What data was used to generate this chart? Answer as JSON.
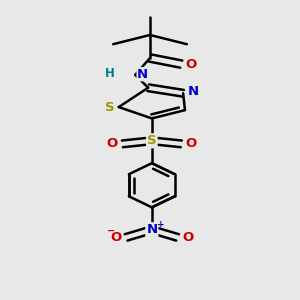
{
  "background_color": "#e8e8e8",
  "bond_color": "#000000",
  "bond_width": 1.8,
  "figsize": [
    3.0,
    3.0
  ],
  "dpi": 100,
  "xlim": [
    0.1,
    0.9
  ],
  "ylim": [
    0.02,
    0.98
  ],
  "colors": {
    "S": "#999900",
    "N": "#0000cc",
    "O": "#cc0000",
    "H": "#008080",
    "C": "#000000"
  }
}
